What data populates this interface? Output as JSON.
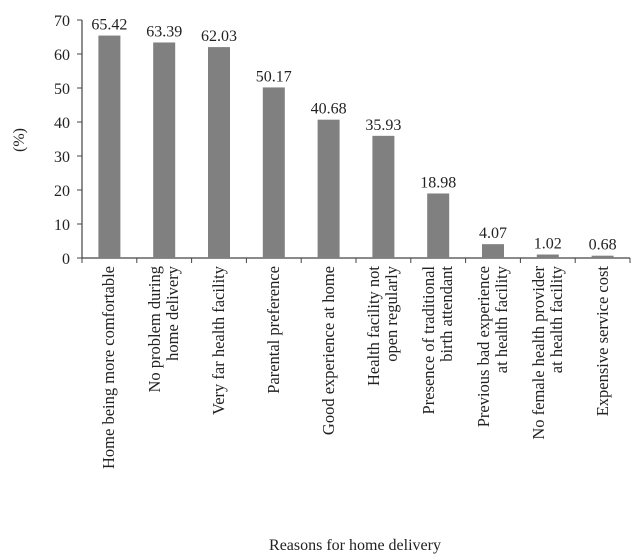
{
  "chart_data": {
    "type": "bar",
    "ylabel": "(%)",
    "xlabel": "Reasons for home delivery",
    "categories": [
      "Home being more comfortable",
      "No problem during\nhome delivery",
      "Very far health facility",
      "Parental preference",
      "Good experience at home",
      "Health facility not\nopen regularly",
      "Presence of traditional\nbirth attendant",
      "Previous bad experience\nat health facility",
      "No female health provider\nat health facility",
      "Expensive service cost"
    ],
    "values": [
      65.42,
      63.39,
      62.03,
      50.17,
      40.68,
      35.93,
      18.98,
      4.07,
      1.02,
      0.68
    ],
    "color": "#808080",
    "ylim": [
      0,
      70
    ],
    "yticks": [
      0,
      10,
      20,
      30,
      40,
      50,
      60,
      70
    ]
  }
}
